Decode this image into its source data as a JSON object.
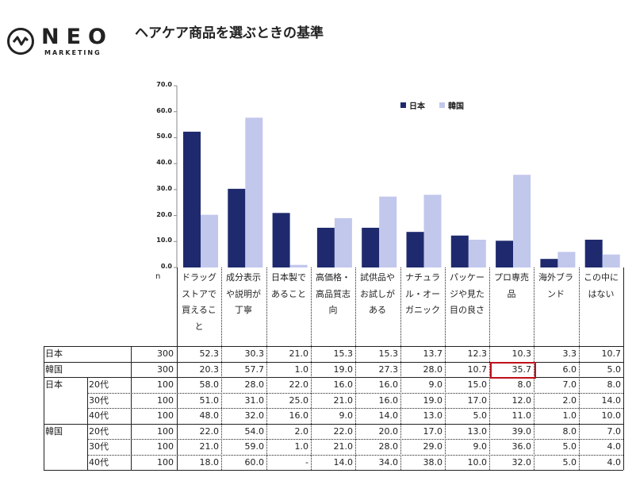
{
  "brand": {
    "name": "NEO",
    "sub": "MARKETING",
    "icon": "wave-circle-icon"
  },
  "title": "ヘアケア商品を選ぶときの基準",
  "colors": {
    "japan": "#1f2a6e",
    "korea": "#c2c7ec",
    "highlight": "#c0101a"
  },
  "chart_data": {
    "type": "bar",
    "ylim": [
      0,
      70
    ],
    "yticks": [
      "0.0",
      "10.0",
      "20.0",
      "30.0",
      "40.0",
      "50.0",
      "60.0",
      "70.0"
    ],
    "legend_position": "top-right",
    "categories": [
      [
        "ドラッグ",
        "ストアで",
        "買えるこ",
        "と"
      ],
      [
        "成分表示",
        "や説明が",
        "丁寧"
      ],
      [
        "日本製で",
        "あること"
      ],
      [
        "高価格・",
        "高品質志",
        "向"
      ],
      [
        "試供品や",
        "お試しが",
        "ある"
      ],
      [
        "ナチュラ",
        "ル・オー",
        "ガニック"
      ],
      [
        "パッケー",
        "ジや見た",
        "目の良さ"
      ],
      [
        "プロ専売",
        "品"
      ],
      [
        "海外ブラ",
        "ンド"
      ],
      [
        "この中に",
        "はない"
      ]
    ],
    "series": [
      {
        "name": "日本",
        "values": [
          52.3,
          30.3,
          21.0,
          15.3,
          15.3,
          13.7,
          12.3,
          10.3,
          3.3,
          10.7
        ]
      },
      {
        "name": "韓国",
        "values": [
          20.3,
          57.7,
          1.0,
          19.0,
          27.3,
          28.0,
          10.7,
          35.7,
          6.0,
          5.0
        ]
      }
    ]
  },
  "table": {
    "n_label": "n",
    "rows": [
      {
        "group": "日本",
        "age": "",
        "n": "300",
        "values": [
          "52.3",
          "30.3",
          "21.0",
          "15.3",
          "15.3",
          "13.7",
          "12.3",
          "10.3",
          "3.3",
          "10.7"
        ]
      },
      {
        "group": "韓国",
        "age": "",
        "n": "300",
        "values": [
          "20.3",
          "57.7",
          "1.0",
          "19.0",
          "27.3",
          "28.0",
          "10.7",
          "35.7",
          "6.0",
          "5.0"
        ]
      },
      {
        "group": "日本",
        "age": "20代",
        "n": "100",
        "values": [
          "58.0",
          "28.0",
          "22.0",
          "16.0",
          "16.0",
          "9.0",
          "15.0",
          "8.0",
          "7.0",
          "8.0"
        ]
      },
      {
        "group": "",
        "age": "30代",
        "n": "100",
        "values": [
          "51.0",
          "31.0",
          "25.0",
          "21.0",
          "16.0",
          "19.0",
          "17.0",
          "12.0",
          "2.0",
          "14.0"
        ]
      },
      {
        "group": "",
        "age": "40代",
        "n": "100",
        "values": [
          "48.0",
          "32.0",
          "16.0",
          "9.0",
          "14.0",
          "13.0",
          "5.0",
          "11.0",
          "1.0",
          "10.0"
        ]
      },
      {
        "group": "韓国",
        "age": "20代",
        "n": "100",
        "values": [
          "22.0",
          "54.0",
          "2.0",
          "22.0",
          "20.0",
          "17.0",
          "13.0",
          "39.0",
          "8.0",
          "7.0"
        ]
      },
      {
        "group": "",
        "age": "30代",
        "n": "100",
        "values": [
          "21.0",
          "59.0",
          "1.0",
          "21.0",
          "28.0",
          "29.0",
          "9.0",
          "36.0",
          "5.0",
          "4.0"
        ]
      },
      {
        "group": "",
        "age": "40代",
        "n": "100",
        "values": [
          "18.0",
          "60.0",
          "-",
          "14.0",
          "34.0",
          "38.0",
          "10.0",
          "32.0",
          "5.0",
          "4.0"
        ]
      }
    ],
    "highlighted": "韓国 プロ専売品 35.7"
  }
}
